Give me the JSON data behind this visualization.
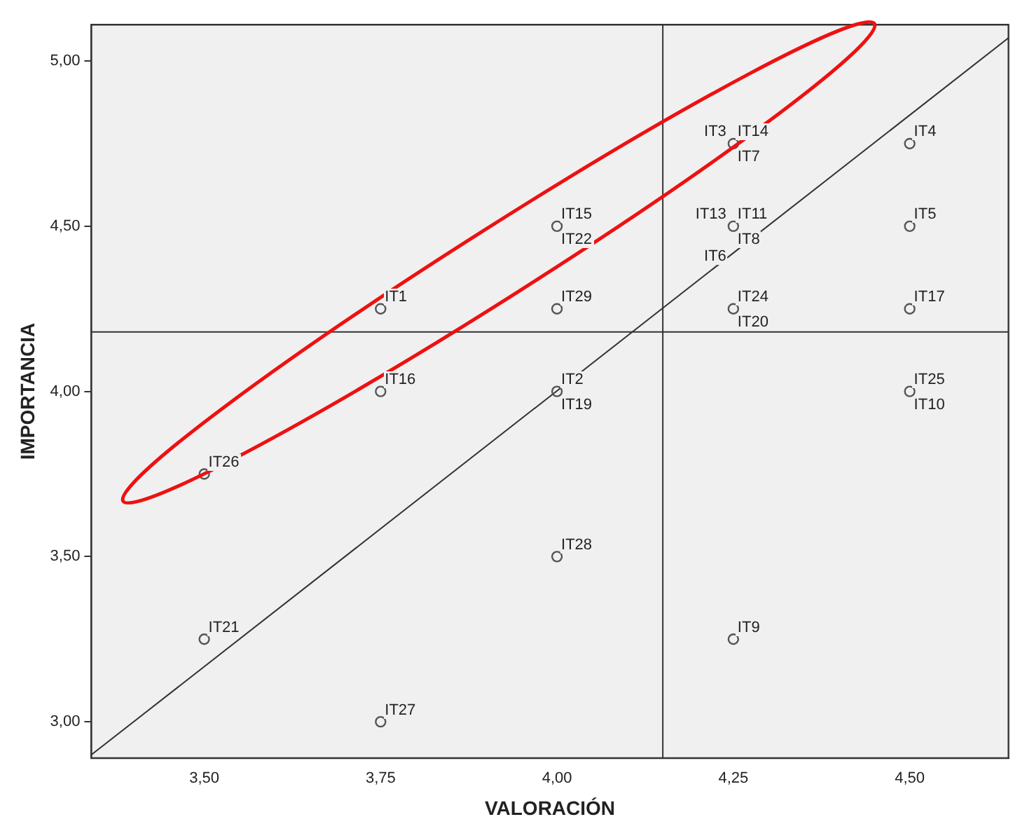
{
  "chart_data": {
    "type": "scatter",
    "xlabel": "VALORACIÓN",
    "ylabel": "IMPORTANCIA",
    "xlim": [
      3.34,
      4.64
    ],
    "ylim": [
      2.89,
      5.11
    ],
    "xticks": [
      {
        "value": 3.5,
        "label": "3,50"
      },
      {
        "value": 3.75,
        "label": "3,75"
      },
      {
        "value": 4,
        "label": "4,00"
      },
      {
        "value": 4.25,
        "label": "4,25"
      },
      {
        "value": 4.5,
        "label": "4,50"
      }
    ],
    "yticks": [
      {
        "value": 3,
        "label": "3,00"
      },
      {
        "value": 3.5,
        "label": "3,50"
      },
      {
        "value": 4,
        "label": "4,00"
      },
      {
        "value": 4.5,
        "label": "4,50"
      },
      {
        "value": 5,
        "label": "5,00"
      }
    ],
    "grid": false,
    "legend": false,
    "marker": "circle",
    "series": [
      {
        "color": "#555555",
        "x": [
          3.75,
          3.75,
          3.5,
          3.5,
          3.75,
          4,
          4,
          4,
          4,
          4.25,
          4.25,
          4.25,
          4.25,
          4.5,
          4.5,
          4.5,
          4.5
        ],
        "values": [
          4.25,
          4,
          3.75,
          3.25,
          3,
          3.5,
          4.5,
          4.25,
          4,
          4.75,
          4.5,
          4.25,
          3.25,
          4.75,
          4.5,
          4.25,
          4
        ]
      },
      {
        "type": "line",
        "marker": "none",
        "color": "#333333",
        "x": [
          3.34,
          4.64
        ],
        "values": [
          2.9,
          5.07
        ]
      }
    ],
    "ref_lines": [
      {
        "axis": "x",
        "value": 4.15,
        "color": "#333333"
      },
      {
        "axis": "y",
        "value": 4.18,
        "color": "#333333"
      }
    ],
    "annotations": [
      {
        "text": "IT1",
        "x": 3.75,
        "y": 4.25
      },
      {
        "text": "IT16",
        "x": 3.75,
        "y": 4
      },
      {
        "text": "IT26",
        "x": 3.5,
        "y": 3.75
      },
      {
        "text": "IT21",
        "x": 3.5,
        "y": 3.25
      },
      {
        "text": "IT27",
        "x": 3.75,
        "y": 3
      },
      {
        "text": "IT28",
        "x": 4,
        "y": 3.5
      },
      {
        "text": "IT15",
        "x": 4,
        "y": 4.5
      },
      {
        "text": "IT22",
        "x": 4,
        "y": 4.5
      },
      {
        "text": "IT29",
        "x": 4,
        "y": 4.25
      },
      {
        "text": "IT2",
        "x": 4,
        "y": 4
      },
      {
        "text": "IT19",
        "x": 4,
        "y": 4
      },
      {
        "text": "IT14",
        "x": 4.25,
        "y": 4.75
      },
      {
        "text": "IT7",
        "x": 4.25,
        "y": 4.75
      },
      {
        "text": "IT3",
        "x": 4.25,
        "y": 4.75
      },
      {
        "text": "IT11",
        "x": 4.25,
        "y": 4.5
      },
      {
        "text": "IT8",
        "x": 4.25,
        "y": 4.5
      },
      {
        "text": "IT13",
        "x": 4.25,
        "y": 4.5
      },
      {
        "text": "IT6",
        "x": 4.25,
        "y": 4.5
      },
      {
        "text": "IT24",
        "x": 4.25,
        "y": 4.25
      },
      {
        "text": "IT20",
        "x": 4.25,
        "y": 4.25
      },
      {
        "text": "IT9",
        "x": 4.25,
        "y": 3.25
      },
      {
        "text": "IT4",
        "x": 4.5,
        "y": 4.75
      },
      {
        "text": "IT5",
        "x": 4.5,
        "y": 4.5
      },
      {
        "text": "IT17",
        "x": 4.5,
        "y": 4.25
      },
      {
        "text": "IT25",
        "x": 4.5,
        "y": 4
      },
      {
        "text": "IT10",
        "x": 4.5,
        "y": 4
      }
    ]
  }
}
